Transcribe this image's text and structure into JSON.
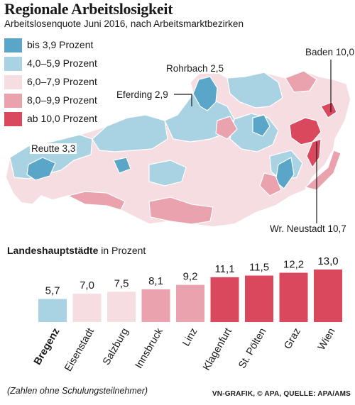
{
  "title": "Regionale Arbeitslosigkeit",
  "subtitle": "Arbeitslosenquote Juni 2016, nach Arbeitsmarktbezirken",
  "legend": [
    {
      "label": "bis 3,9 Prozent",
      "color": "#5aa6c8"
    },
    {
      "label": "4,0–5,9 Prozent",
      "color": "#a9d3e3"
    },
    {
      "label": "6,0–7,9 Prozent",
      "color": "#f6dde2"
    },
    {
      "label": "8,0–9,9 Prozent",
      "color": "#e9a2ae"
    },
    {
      "label": "ab 10,0 Prozent",
      "color": "#d9485c"
    }
  ],
  "map_labels": {
    "rohrbach": "Rohrbach 2,5",
    "eferding": "Eferding 2,9",
    "reutte": "Reutte 3,3",
    "baden": "Baden 10,0",
    "neustadt": "Wr. Neustadt 10,7"
  },
  "lh_heading": {
    "bold": "Landeshauptstädte",
    "rest": " in Prozent"
  },
  "chart_data": {
    "type": "bar",
    "categories": [
      "Bregenz",
      "Eisenstadt",
      "Salzburg",
      "Innsbruck",
      "Linz",
      "Klagenfurt",
      "St. Pölten",
      "Graz",
      "Wien"
    ],
    "values": [
      5.7,
      7.0,
      7.5,
      8.1,
      9.2,
      11.1,
      11.5,
      12.2,
      13.0
    ],
    "value_labels": [
      "5,7",
      "7,0",
      "7,5",
      "8,1",
      "9,2",
      "11,1",
      "11,5",
      "12,2",
      "13,0"
    ],
    "ylabel": "Prozent",
    "highlighted_category": "Bregenz"
  },
  "footnote": "(Zahlen ohne Schulungsteilnehmer)",
  "source": "VN-GRAFIK, © APA, QUELLE: APA/AMS"
}
